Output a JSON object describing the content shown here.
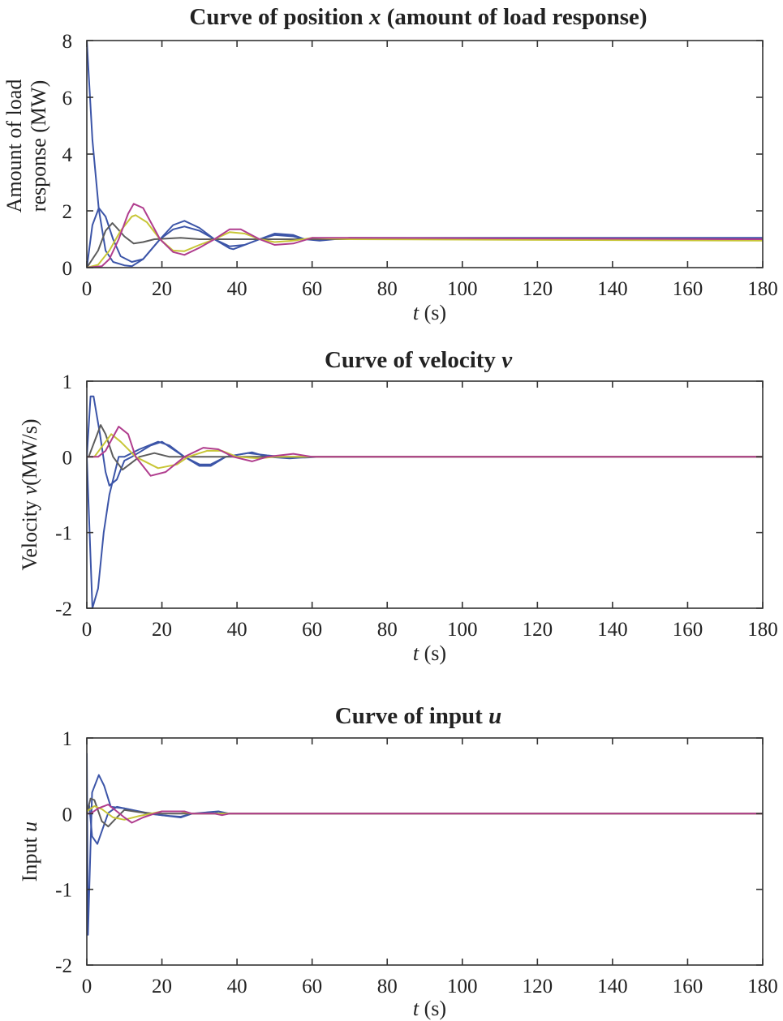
{
  "colors": {
    "blue": "#3c55a8",
    "gray": "#5c5c5c",
    "yellow": "#c8c637",
    "magenta": "#b03d8e"
  },
  "chart_data": [
    {
      "type": "line",
      "title": {
        "prefix": "Curve of position ",
        "var": "x",
        "suffix": " (amount of load response)"
      },
      "xlabel": {
        "var": "t",
        "suffix": " (s)"
      },
      "ylabel": {
        "lines": [
          "Amount of load",
          "response (MW)"
        ]
      },
      "xlim": [
        0,
        180
      ],
      "ylim": [
        0,
        8
      ],
      "x_ticks": [
        "0",
        "20",
        "40",
        "60",
        "80",
        "100",
        "120",
        "140",
        "160",
        "180"
      ],
      "y_ticks": [
        "0",
        "2",
        "4",
        "6",
        "8"
      ],
      "grid": false,
      "series": [
        {
          "color": "blue",
          "points": [
            [
              0,
              8
            ],
            [
              1.5,
              4.5
            ],
            [
              3.2,
              2.05
            ],
            [
              5,
              0.6
            ],
            [
              7,
              0.2
            ],
            [
              10,
              0.08
            ],
            [
              12,
              0.05
            ],
            [
              15,
              0.3
            ],
            [
              19.5,
              1.0
            ],
            [
              23,
              1.5
            ],
            [
              26,
              1.65
            ],
            [
              30,
              1.4
            ],
            [
              34,
              1.0
            ],
            [
              38,
              0.68
            ],
            [
              39,
              0.65
            ],
            [
              43,
              0.85
            ],
            [
              46,
              1.0
            ],
            [
              50,
              1.2
            ],
            [
              55,
              1.15
            ],
            [
              58,
              1.0
            ],
            [
              62,
              0.95
            ],
            [
              70,
              1.05
            ],
            [
              180,
              1.05
            ]
          ]
        },
        {
          "color": "blue",
          "points": [
            [
              0,
              0
            ],
            [
              1.5,
              1.5
            ],
            [
              3.2,
              2.1
            ],
            [
              5,
              1.8
            ],
            [
              7,
              1.0
            ],
            [
              9,
              0.4
            ],
            [
              12,
              0.2
            ],
            [
              15,
              0.3
            ],
            [
              19.5,
              1.0
            ],
            [
              23,
              1.35
            ],
            [
              26,
              1.45
            ],
            [
              30,
              1.3
            ],
            [
              34,
              1.0
            ],
            [
              38,
              0.75
            ],
            [
              42,
              0.8
            ],
            [
              46,
              1.0
            ],
            [
              50,
              1.15
            ],
            [
              55,
              1.1
            ],
            [
              58,
              1.0
            ],
            [
              180,
              1.0
            ]
          ]
        },
        {
          "color": "gray",
          "points": [
            [
              0,
              0
            ],
            [
              3,
              0.6
            ],
            [
              5,
              1.3
            ],
            [
              6.8,
              1.57
            ],
            [
              8,
              1.4
            ],
            [
              10,
              1.1
            ],
            [
              12.5,
              0.85
            ],
            [
              15,
              0.9
            ],
            [
              18,
              1.0
            ],
            [
              25,
              1.05
            ],
            [
              30,
              1.0
            ],
            [
              180,
              1.0
            ]
          ]
        },
        {
          "color": "yellow",
          "points": [
            [
              0,
              0
            ],
            [
              3,
              0.1
            ],
            [
              6,
              0.6
            ],
            [
              9,
              1.3
            ],
            [
              12,
              1.8
            ],
            [
              13,
              1.85
            ],
            [
              16,
              1.6
            ],
            [
              19.5,
              1.0
            ],
            [
              23,
              0.6
            ],
            [
              26,
              0.58
            ],
            [
              30,
              0.8
            ],
            [
              34,
              1.0
            ],
            [
              38,
              1.25
            ],
            [
              42,
              1.2
            ],
            [
              46,
              1.0
            ],
            [
              50,
              0.9
            ],
            [
              55,
              0.95
            ],
            [
              60,
              1.05
            ],
            [
              70,
              1.0
            ],
            [
              180,
              0.95
            ]
          ]
        },
        {
          "color": "magenta",
          "points": [
            [
              0,
              0
            ],
            [
              4,
              0.05
            ],
            [
              6,
              0.3
            ],
            [
              8.5,
              1.0
            ],
            [
              11,
              1.9
            ],
            [
              12.5,
              2.25
            ],
            [
              15,
              2.1
            ],
            [
              19.5,
              1.0
            ],
            [
              23,
              0.55
            ],
            [
              26,
              0.45
            ],
            [
              30,
              0.7
            ],
            [
              34,
              1.0
            ],
            [
              38,
              1.35
            ],
            [
              41,
              1.35
            ],
            [
              46,
              1.0
            ],
            [
              50,
              0.8
            ],
            [
              55,
              0.85
            ],
            [
              60,
              1.05
            ],
            [
              70,
              1.05
            ],
            [
              180,
              1.0
            ]
          ]
        }
      ]
    },
    {
      "type": "line",
      "title": {
        "prefix": "Curve of velocity ",
        "var": "v",
        "suffix": ""
      },
      "xlabel": {
        "var": "t",
        "suffix": " (s)"
      },
      "ylabel": {
        "prefix": "Velocity ",
        "var": "v",
        "suffix": "(MW/s)"
      },
      "xlim": [
        0,
        180
      ],
      "ylim": [
        -2,
        1
      ],
      "x_ticks": [
        "0",
        "20",
        "40",
        "60",
        "80",
        "100",
        "120",
        "140",
        "160",
        "180"
      ],
      "y_ticks": [
        "-2",
        "-1",
        "0",
        "1"
      ],
      "grid": false,
      "series": [
        {
          "color": "blue",
          "points": [
            [
              0,
              0
            ],
            [
              1.5,
              -2
            ],
            [
              3,
              -1.74
            ],
            [
              4.5,
              -1.0
            ],
            [
              6,
              -0.5
            ],
            [
              8.5,
              0
            ],
            [
              10,
              0
            ],
            [
              14,
              0.1
            ],
            [
              19,
              0.2
            ],
            [
              22,
              0.15
            ],
            [
              26,
              0
            ],
            [
              30,
              -0.1
            ],
            [
              33,
              -0.1
            ],
            [
              37,
              0
            ],
            [
              43,
              0.05
            ],
            [
              48,
              0.02
            ],
            [
              52,
              0
            ],
            [
              58,
              -0.01
            ],
            [
              62,
              0
            ],
            [
              180,
              0
            ]
          ]
        },
        {
          "color": "blue",
          "points": [
            [
              0,
              0
            ],
            [
              1,
              0.8
            ],
            [
              1.8,
              0.8
            ],
            [
              3.5,
              0.3
            ],
            [
              5,
              -0.2
            ],
            [
              6,
              -0.38
            ],
            [
              8,
              -0.3
            ],
            [
              10,
              -0.05
            ],
            [
              12,
              0
            ],
            [
              17,
              0.15
            ],
            [
              20,
              0.2
            ],
            [
              23,
              0.1
            ],
            [
              26,
              0
            ],
            [
              30,
              -0.12
            ],
            [
              33,
              -0.12
            ],
            [
              37,
              0
            ],
            [
              44,
              0.06
            ],
            [
              48,
              0
            ],
            [
              54,
              -0.02
            ],
            [
              60,
              0
            ],
            [
              180,
              0
            ]
          ]
        },
        {
          "color": "gray",
          "points": [
            [
              0,
              0
            ],
            [
              0.5,
              0
            ],
            [
              3.7,
              0.42
            ],
            [
              5,
              0.3
            ],
            [
              7,
              0
            ],
            [
              9.5,
              -0.17
            ],
            [
              14,
              0
            ],
            [
              18,
              0.05
            ],
            [
              22,
              0
            ],
            [
              180,
              0
            ]
          ]
        },
        {
          "color": "yellow",
          "points": [
            [
              0,
              0
            ],
            [
              2,
              0
            ],
            [
              6.5,
              0.3
            ],
            [
              9,
              0.2
            ],
            [
              13,
              0
            ],
            [
              19,
              -0.15
            ],
            [
              24,
              -0.1
            ],
            [
              27,
              0
            ],
            [
              32,
              0.08
            ],
            [
              36,
              0.08
            ],
            [
              40,
              0
            ],
            [
              46,
              -0.02
            ],
            [
              50,
              0
            ],
            [
              180,
              0
            ]
          ]
        },
        {
          "color": "magenta",
          "points": [
            [
              0,
              0
            ],
            [
              3,
              0
            ],
            [
              5,
              0.08
            ],
            [
              8.5,
              0.4
            ],
            [
              11,
              0.3
            ],
            [
              13,
              0
            ],
            [
              17,
              -0.25
            ],
            [
              21,
              -0.2
            ],
            [
              26,
              0
            ],
            [
              31,
              0.12
            ],
            [
              35,
              0.1
            ],
            [
              39,
              0
            ],
            [
              44,
              -0.06
            ],
            [
              48,
              0
            ],
            [
              55,
              0.04
            ],
            [
              60,
              0
            ],
            [
              180,
              0
            ]
          ]
        }
      ]
    },
    {
      "type": "line",
      "title": {
        "prefix": "Curve of input ",
        "var": "u",
        "suffix": ""
      },
      "xlabel": {
        "var": "t",
        "suffix": " (s)"
      },
      "ylabel": {
        "prefix": "Input ",
        "var": "u",
        "suffix": ""
      },
      "xlim": [
        0,
        180
      ],
      "ylim": [
        -2,
        1
      ],
      "x_ticks": [
        "0",
        "20",
        "40",
        "60",
        "80",
        "100",
        "120",
        "140",
        "160",
        "180"
      ],
      "y_ticks": [
        "-2",
        "-1",
        "0",
        "1"
      ],
      "grid": false,
      "series": [
        {
          "color": "blue",
          "points": [
            [
              0,
              0.8
            ],
            [
              0.3,
              -1.6
            ],
            [
              1.4,
              0.28
            ],
            [
              3.2,
              0.51
            ],
            [
              4.6,
              0.37
            ],
            [
              6.4,
              0.09
            ],
            [
              10,
              0.07
            ],
            [
              13,
              0.04
            ],
            [
              17,
              0
            ],
            [
              20,
              -0.02
            ],
            [
              25,
              -0.05
            ],
            [
              28,
              0
            ],
            [
              34,
              0
            ],
            [
              35,
              0.03
            ],
            [
              37,
              0
            ],
            [
              180,
              0
            ]
          ]
        },
        {
          "color": "blue",
          "points": [
            [
              0,
              0
            ],
            [
              0.7,
              0.1
            ],
            [
              1.4,
              -0.3
            ],
            [
              2.8,
              -0.4
            ],
            [
              5.7,
              0.01
            ],
            [
              8,
              0.09
            ],
            [
              12,
              0.05
            ],
            [
              16,
              0
            ],
            [
              22,
              -0.03
            ],
            [
              25,
              -0.04
            ],
            [
              28,
              0
            ],
            [
              35,
              0.03
            ],
            [
              38,
              0
            ],
            [
              180,
              0
            ]
          ]
        },
        {
          "color": "gray",
          "points": [
            [
              0,
              0
            ],
            [
              1,
              0.2
            ],
            [
              2,
              0.18
            ],
            [
              4,
              -0.1
            ],
            [
              5.7,
              -0.17
            ],
            [
              8,
              -0.05
            ],
            [
              10,
              0.05
            ],
            [
              14,
              0.02
            ],
            [
              18,
              0
            ],
            [
              180,
              0
            ]
          ]
        },
        {
          "color": "yellow",
          "points": [
            [
              0,
              0.03
            ],
            [
              2,
              0.1
            ],
            [
              4,
              0.06
            ],
            [
              7,
              -0.05
            ],
            [
              10,
              -0.08
            ],
            [
              14,
              -0.03
            ],
            [
              17,
              0
            ],
            [
              20,
              0.03
            ],
            [
              25,
              0.03
            ],
            [
              28,
              0
            ],
            [
              180,
              0
            ]
          ]
        },
        {
          "color": "magenta",
          "points": [
            [
              0,
              0
            ],
            [
              1,
              0
            ],
            [
              3,
              0.07
            ],
            [
              5.7,
              0.12
            ],
            [
              8,
              0.03
            ],
            [
              10,
              -0.05
            ],
            [
              12,
              -0.12
            ],
            [
              15,
              -0.05
            ],
            [
              18,
              0
            ],
            [
              20,
              0.03
            ],
            [
              26,
              0.03
            ],
            [
              28,
              0
            ],
            [
              34,
              0
            ],
            [
              36,
              -0.02
            ],
            [
              38,
              0
            ],
            [
              180,
              0
            ]
          ]
        }
      ]
    }
  ]
}
